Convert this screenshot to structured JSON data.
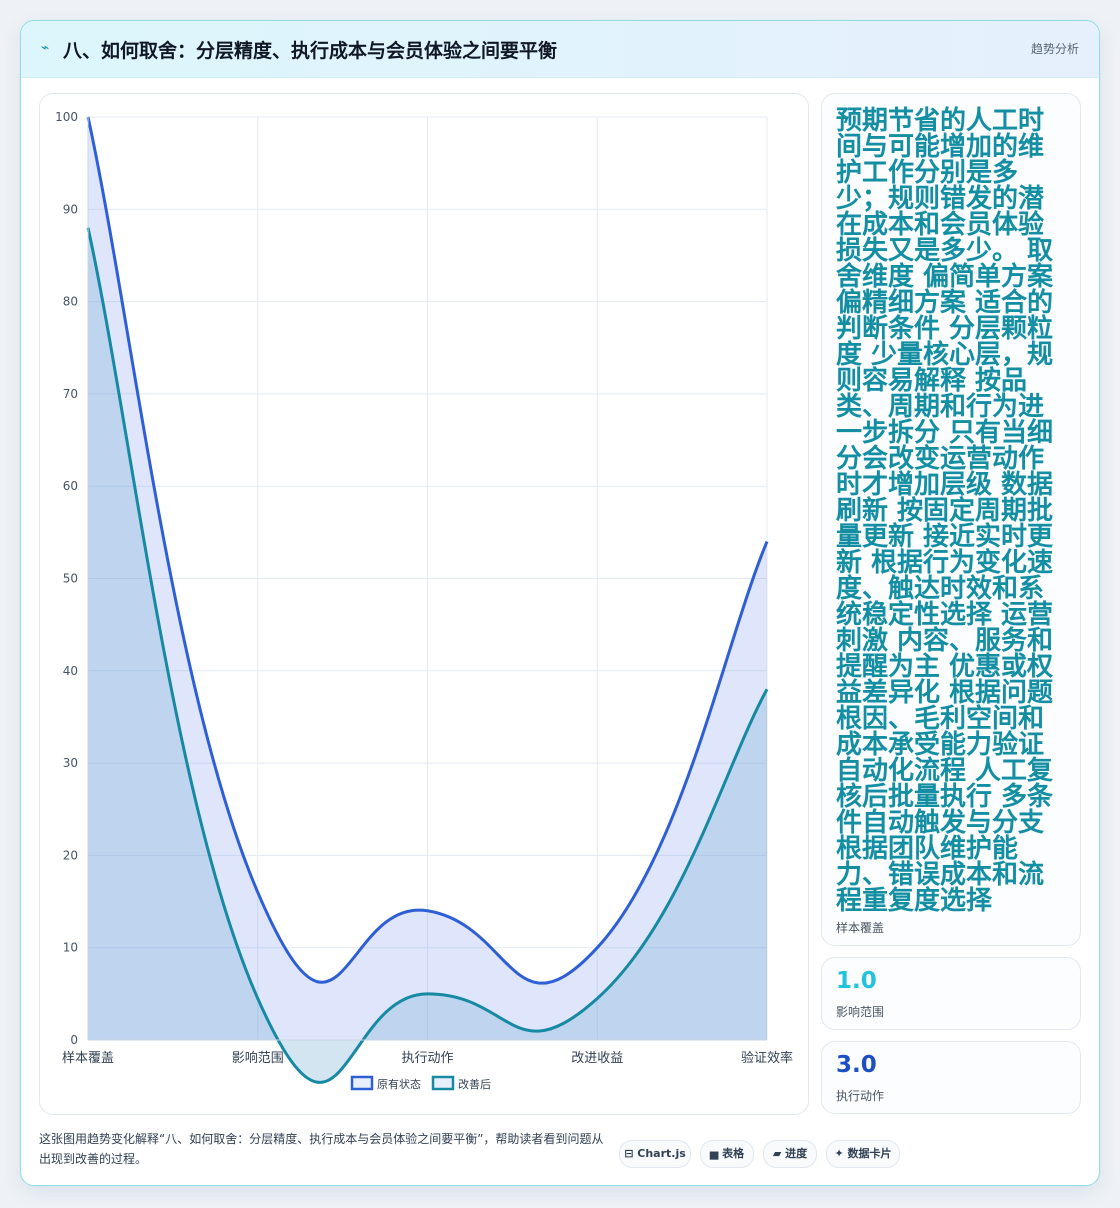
{
  "header": {
    "icon": "chart-icon",
    "title": "八、如何取舍：分层精度、执行成本与会员体验之间要平衡",
    "tag": "趋势分析"
  },
  "chart_data": {
    "type": "area",
    "categories": [
      "样本覆盖",
      "影响范围",
      "执行动作",
      "改进收益",
      "验证效率"
    ],
    "series": [
      {
        "name": "原有状态",
        "values": [
          100,
          16,
          14,
          10,
          54
        ],
        "color": "#2f5fd6"
      },
      {
        "name": "改善后",
        "values": [
          88,
          4.5,
          5,
          4.5,
          38
        ],
        "color": "#1789a3"
      }
    ],
    "ylim": [
      0,
      100
    ],
    "yticks": [
      0,
      10,
      20,
      30,
      40,
      50,
      60,
      70,
      80,
      90,
      100
    ],
    "grid": true,
    "legend": "bottom"
  },
  "side": {
    "card1": {
      "text": "预期节省的人工时间与可能增加的维护工作分别是多少；规则错发的潜在成本和会员体验损失又是多少。 取舍维度 偏简单方案 偏精细方案 适合的判断条件 分层颗粒度 少量核心层，规则容易解释 按品类、周期和行为进一步拆分 只有当细分会改变运营动作时才增加层级 数据刷新 按固定周期批量更新 接近实时更新 根据行为变化速度、触达时效和系统稳定性选择 运营刺激 内容、服务和提醒为主 优惠或权益差异化 根据问题根因、毛利空间和成本承受能力验证 自动化流程 人工复核后批量执行 多条件自动触发与分支 根据团队维护能力、错误成本和流程重复度选择",
      "label": "样本覆盖"
    },
    "card2": {
      "value": "1.0",
      "label": "影响范围",
      "color": "#22c3dc"
    },
    "card3": {
      "value": "3.0",
      "label": "执行动作",
      "color": "#1d4fc4"
    }
  },
  "footer": {
    "text": "这张图用趋势变化解释“八、如何取舍：分层精度、执行成本与会员体验之间要平衡”，帮助读者看到问题从出现到改善的过程。",
    "chips": [
      "⊟ Chart.js",
      "▅ 表格",
      "▰ 进度",
      "✦ 数据卡片"
    ]
  }
}
